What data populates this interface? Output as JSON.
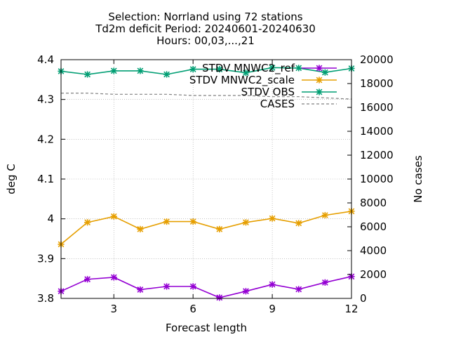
{
  "title_lines": [
    "Selection: Norrland using    72 stations",
    "Td2m deficit   Period: 20240601-20240630",
    "Hours: 00,03,...,21"
  ],
  "chart_data": {
    "type": "line",
    "xlabel": "Forecast length",
    "ylabel": "deg C",
    "y2label": "No cases",
    "xlim": [
      1,
      12
    ],
    "ylim": [
      3.8,
      4.4
    ],
    "y2lim": [
      0,
      20000
    ],
    "xticks": [
      3,
      6,
      9,
      12
    ],
    "yticks": [
      3.8,
      3.9,
      4,
      4.1,
      4.2,
      4.3,
      4.4
    ],
    "ytick_labels": [
      "3.8",
      "3.9",
      "4",
      "4.1",
      "4.2",
      "4.3",
      "4.4"
    ],
    "y2ticks": [
      0,
      2000,
      4000,
      6000,
      8000,
      10000,
      12000,
      14000,
      16000,
      18000,
      20000
    ],
    "grid": true,
    "legend_position": "top-right",
    "x": [
      1,
      2,
      3,
      4,
      5,
      6,
      7,
      8,
      9,
      10,
      11,
      12
    ],
    "series": [
      {
        "name": "STDV MNWC2_ref",
        "color": "#9400d3",
        "axis": "y1",
        "values": [
          3.818,
          3.848,
          3.853,
          3.822,
          3.83,
          3.83,
          3.802,
          3.818,
          3.835,
          3.823,
          3.84,
          3.855
        ]
      },
      {
        "name": "STDV MNWC2_scale",
        "color": "#e69f00",
        "axis": "y1",
        "values": [
          3.936,
          3.991,
          4.006,
          3.974,
          3.993,
          3.993,
          3.974,
          3.991,
          4.001,
          3.989,
          4.009,
          4.019
        ]
      },
      {
        "name": "STDV OBS",
        "color": "#009e73",
        "axis": "y1",
        "values": [
          4.371,
          4.363,
          4.372,
          4.372,
          4.363,
          4.376,
          4.376,
          4.367,
          4.38,
          4.379,
          4.368,
          4.378
        ]
      },
      {
        "name": "CASES",
        "color": "#808080",
        "axis": "y2",
        "dashed": true,
        "values": [
          17200,
          17200,
          17100,
          17100,
          17100,
          17000,
          17000,
          17000,
          16900,
          16900,
          16800,
          16700
        ]
      }
    ]
  }
}
